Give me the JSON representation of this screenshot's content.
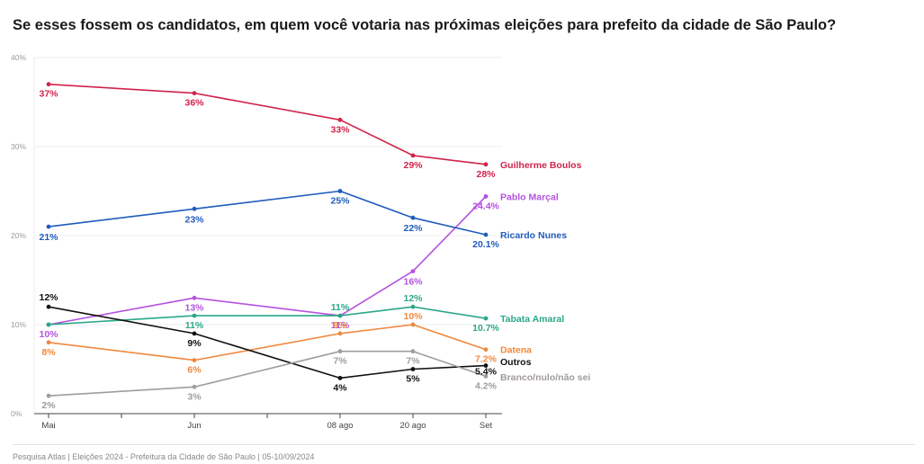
{
  "title": "Se esses fossem os candidatos, em quem você votaria nas próximas eleições para prefeito da cidade de São Paulo?",
  "footer": "Pesquisa Atlas  |  Eleições 2024 - Prefeitura da Cidade de São Paulo  |  05-10/09/2024",
  "chart_data": {
    "type": "line",
    "x": [
      "Mai",
      "Jun",
      "08 ago",
      "20 ago",
      "Set"
    ],
    "x_positions": [
      0,
      1,
      2,
      2.6,
      3
    ],
    "y_ticks": [
      "0%",
      "10%",
      "20%",
      "30%",
      "40%"
    ],
    "ylim": [
      0,
      40
    ],
    "grid": true,
    "legend": "end-labels-right",
    "series": [
      {
        "name": "Guilherme Boulos",
        "color": "#d0234a",
        "values": [
          37,
          36,
          33,
          29,
          28
        ],
        "labels": [
          "37%",
          "36%",
          "33%",
          "29%",
          "28%"
        ]
      },
      {
        "name": "Pablo Marçal",
        "color": "#b452e0",
        "values": [
          10,
          13,
          11,
          16,
          24.4
        ],
        "labels": [
          "10%",
          "13%",
          "11%",
          "16%",
          "24.4%"
        ]
      },
      {
        "name": "Ricardo Nunes",
        "color": "#1f5bbd",
        "values": [
          21,
          23,
          25,
          22,
          20.1
        ],
        "labels": [
          "21%",
          "23%",
          "25%",
          "22%",
          "20.1%"
        ]
      },
      {
        "name": "Tabata Amaral",
        "color": "#2aa888",
        "values": [
          10,
          11,
          11,
          12,
          10.7
        ],
        "labels": [
          "",
          "11%",
          "11%",
          "12%",
          "10.7%"
        ]
      },
      {
        "name": "Datena",
        "color": "#f0883e",
        "values": [
          8,
          6,
          9,
          10,
          7.2
        ],
        "labels": [
          "8%",
          "6%",
          "9%",
          "10%",
          "7.2%"
        ]
      },
      {
        "name": "Outros",
        "color": "#111111",
        "values": [
          12,
          9,
          4,
          5,
          5.4
        ],
        "labels": [
          "12%",
          "9%",
          "4%",
          "5%",
          "5.4%"
        ]
      },
      {
        "name": "Branco/nulo/não sei",
        "color": "#a19c9a",
        "values": [
          2,
          3,
          7,
          7,
          4.2
        ],
        "labels": [
          "2%",
          "3%",
          "7%",
          "7%",
          "4.2%"
        ]
      }
    ]
  }
}
